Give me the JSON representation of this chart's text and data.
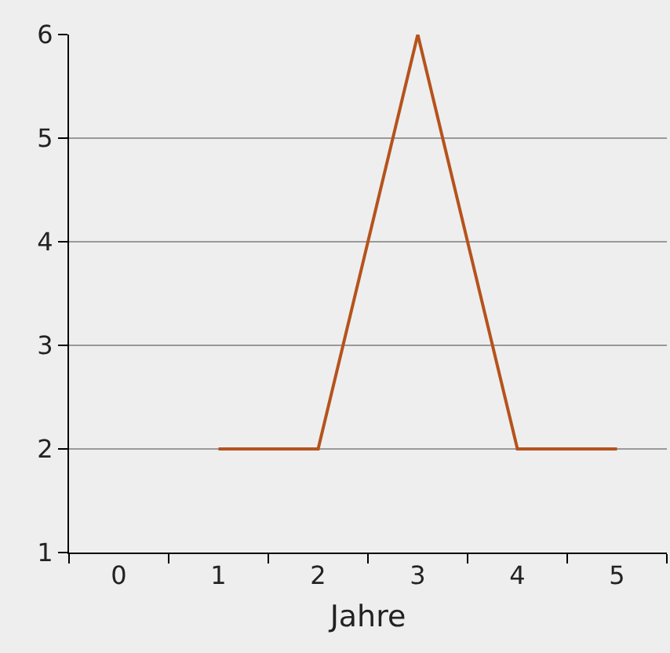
{
  "chart_data": {
    "type": "line",
    "xlabel": "Jahre",
    "categories": [
      "0",
      "1",
      "2",
      "3",
      "4",
      "5"
    ],
    "series": [
      {
        "color": "#b5531c",
        "values": [
          null,
          2,
          2,
          6,
          2,
          2
        ]
      }
    ],
    "ylim": [
      1,
      6
    ],
    "yticks": [
      1,
      2,
      3,
      4,
      5,
      6
    ],
    "grid": "y",
    "marker": "none",
    "line_style": "solid"
  }
}
